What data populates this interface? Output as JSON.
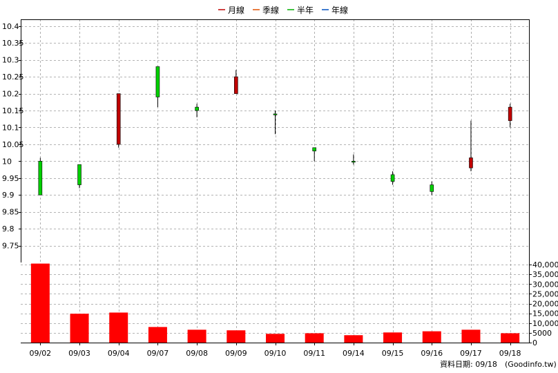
{
  "legend": [
    {
      "label": "月線",
      "color": "#c00000"
    },
    {
      "label": "季線",
      "color": "#e05000"
    },
    {
      "label": "半年",
      "color": "#00b000"
    },
    {
      "label": "年線",
      "color": "#0050c0"
    }
  ],
  "footer": {
    "text": "資料日期: 09/18",
    "source": "(Goodinfo.tw)"
  },
  "chart_data": [
    {
      "type": "candlestick",
      "categories": [
        "09/02",
        "09/03",
        "09/04",
        "09/07",
        "09/08",
        "09/09",
        "09/10",
        "09/11",
        "09/14",
        "09/15",
        "09/16",
        "09/17",
        "09/18"
      ],
      "ohlc": [
        {
          "open": 9.9,
          "high": 10.01,
          "low": 9.9,
          "close": 10.0
        },
        {
          "open": 9.93,
          "high": 9.99,
          "low": 9.92,
          "close": 9.99
        },
        {
          "open": 10.2,
          "high": 10.2,
          "low": 10.04,
          "close": 10.05
        },
        {
          "open": 10.19,
          "high": 10.28,
          "low": 10.16,
          "close": 10.28
        },
        {
          "open": 10.15,
          "high": 10.17,
          "low": 10.13,
          "close": 10.16
        },
        {
          "open": 10.25,
          "high": 10.27,
          "low": 10.2,
          "close": 10.2
        },
        {
          "open": 10.14,
          "high": 10.15,
          "low": 10.08,
          "close": 10.14
        },
        {
          "open": 10.03,
          "high": 10.04,
          "low": 10.0,
          "close": 10.04
        },
        {
          "open": 10.0,
          "high": 10.02,
          "low": 9.99,
          "close": 10.0
        },
        {
          "open": 9.94,
          "high": 9.97,
          "low": 9.93,
          "close": 9.96
        },
        {
          "open": 9.91,
          "high": 9.94,
          "low": 9.9,
          "close": 9.93
        },
        {
          "open": 10.01,
          "high": 10.12,
          "low": 9.97,
          "close": 9.98
        },
        {
          "open": 10.16,
          "high": 10.17,
          "low": 10.1,
          "close": 10.12
        }
      ],
      "up_color": "#00d000",
      "down_color": "#c00000",
      "ylim": [
        9.7,
        10.42
      ],
      "yticks": [
        9.75,
        9.8,
        9.85,
        9.9,
        9.95,
        10,
        10.05,
        10.1,
        10.15,
        10.2,
        10.25,
        10.3,
        10.35,
        10.4
      ],
      "ytick_labels": [
        "9.75",
        "9.8",
        "9.85",
        "9.9",
        "9.95",
        "10",
        "10.05",
        "10.1",
        "10.15",
        "10.2",
        "10.25",
        "10.3",
        "10.35",
        "10.4"
      ],
      "grid": true
    },
    {
      "type": "bar",
      "categories": [
        "09/02",
        "09/03",
        "09/04",
        "09/07",
        "09/08",
        "09/09",
        "09/10",
        "09/11",
        "09/14",
        "09/15",
        "09/16",
        "09/17",
        "09/18"
      ],
      "values": [
        40500,
        14800,
        15400,
        8000,
        6600,
        6300,
        4500,
        4800,
        3800,
        5200,
        5800,
        6600,
        4800
      ],
      "color": "#ff0000",
      "ylim": [
        0,
        40000
      ],
      "yticks": [
        0,
        5000,
        10000,
        15000,
        20000,
        25000,
        30000,
        35000,
        40000
      ],
      "ytick_labels": [
        "0",
        "5000",
        "10,000",
        "15,000",
        "20,000",
        "25,000",
        "30,000",
        "35,000",
        "40,000"
      ],
      "grid": true
    }
  ]
}
